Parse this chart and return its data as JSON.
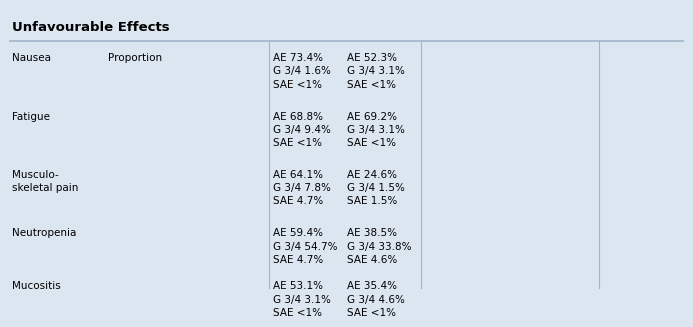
{
  "title": "Unfavourable Effects",
  "bg_color": "#dce6f1",
  "text_color": "#000000",
  "title_color": "#000000",
  "line_color": "#a0b4c8",
  "c0": 0.003,
  "c1": 0.145,
  "c2": 0.285,
  "c3": 0.39,
  "c4": 0.5,
  "c5": 0.615,
  "c6": 0.755,
  "c7": 0.88,
  "title_fontsize": 9.5,
  "data_fontsize": 7.5,
  "row_tops": [
    0.845,
    0.635,
    0.425,
    0.215,
    0.025
  ],
  "rows": [
    {
      "label": "Nausea",
      "col2": "Proportion",
      "col4": "AE 73.4%\nG 3/4 1.6%\nSAE <1%",
      "col5": "AE 52.3%\nG 3/4 3.1%\nSAE <1%"
    },
    {
      "label": "Fatigue",
      "col2": "",
      "col4": "AE 68.8%\nG 3/4 9.4%\nSAE <1%",
      "col5": "AE 69.2%\nG 3/4 3.1%\nSAE <1%"
    },
    {
      "label": "Musculo-\nskeletal pain",
      "col2": "",
      "col4": "AE 64.1%\nG 3/4 7.8%\nSAE 4.7%",
      "col5": "AE 24.6%\nG 3/4 1.5%\nSAE 1.5%"
    },
    {
      "label": "Neutropenia",
      "col2": "",
      "col4": "AE 59.4%\nG 3/4 54.7%\nSAE 4.7%",
      "col5": "AE 38.5%\nG 3/4 33.8%\nSAE 4.6%"
    },
    {
      "label": "Mucositis",
      "col2": "",
      "col4": "AE 53.1%\nG 3/4 3.1%\nSAE <1%",
      "col5": "AE 35.4%\nG 3/4 4.6%\nSAE <1%"
    }
  ]
}
